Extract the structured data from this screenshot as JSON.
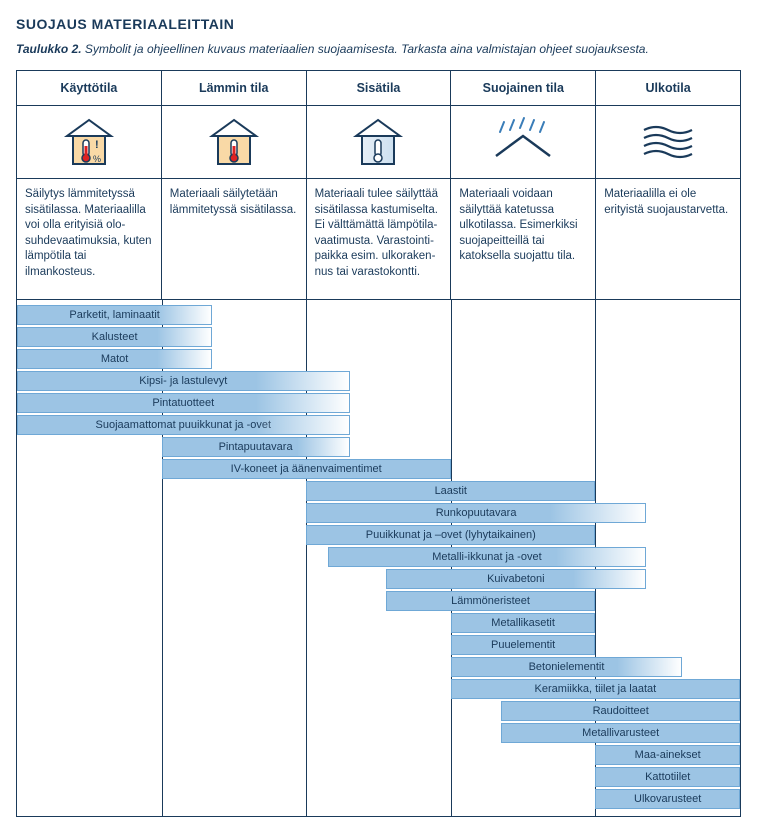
{
  "heading": "SUOJAUS MATERIAALEITTAIN",
  "caption_bold": "Taulukko 2.",
  "caption_rest": "Symbolit ja ohjeellinen kuvaus materiaalien suojaamisesta. Tarkasta aina valmistajan ohjeet suojauksesta.",
  "columns": [
    {
      "title": "Käyttötila",
      "desc": "Säilytys lämmitetyssä sisätilassa. Materiaalilla voi olla erityisiä olo-suhdevaatimuksia, kuten lämpötila tai ilmankosteus."
    },
    {
      "title": "Lämmin tila",
      "desc": "Materiaali säilytetään lämmitetyssä sisätilassa."
    },
    {
      "title": "Sisätila",
      "desc": "Materiaali tulee säilyttää sisätilassa kastumiselta. Ei välttämättä lämpötila-vaatimusta. Varastointi-paikka esim. ulkoraken-nus tai varastokontti."
    },
    {
      "title": "Suojainen tila",
      "desc": "Materiaali voidaan säilyttää katetussa ulkotilassa. Esimerkiksi suojapeitteillä tai katoksella suojattu tila."
    },
    {
      "title": "Ulkotila",
      "desc": "Materiaalilla ei ole erityistä suojaustarvetta."
    }
  ],
  "colors": {
    "bar_fill": "#9cc4e4",
    "bar_border": "#6fa8d6",
    "frame": "#1a3a5a",
    "text": "#1a3a5a",
    "bg": "#ffffff"
  },
  "n_cols": 5,
  "bars": [
    {
      "label": "Parketit, laminaatit",
      "start": 0.0,
      "end": 1.35,
      "fade": true
    },
    {
      "label": "Kalusteet",
      "start": 0.0,
      "end": 1.35,
      "fade": true
    },
    {
      "label": "Matot",
      "start": 0.0,
      "end": 1.35,
      "fade": true
    },
    {
      "label": "Kipsi- ja lastulevyt",
      "start": 0.0,
      "end": 2.3,
      "fade": true
    },
    {
      "label": "Pintatuotteet",
      "start": 0.0,
      "end": 2.3,
      "fade": true
    },
    {
      "label": "Suojaamattomat puuikkunat ja -ovet",
      "start": 0.0,
      "end": 2.3,
      "fade": true
    },
    {
      "label": "Pintapuutavara",
      "start": 1.0,
      "end": 2.3,
      "fade": true
    },
    {
      "label": "IV-koneet ja äänenvaimentimet",
      "start": 1.0,
      "end": 3.0,
      "fade": false
    },
    {
      "label": "Laastit",
      "start": 2.0,
      "end": 4.0,
      "fade": false
    },
    {
      "label": "Runkopuutavara",
      "start": 2.0,
      "end": 4.35,
      "fade": true
    },
    {
      "label": "Puuikkunat ja –ovet (lyhytaikainen)",
      "start": 2.0,
      "end": 4.0,
      "fade": false
    },
    {
      "label": "Metalli-ikkunat ja -ovet",
      "start": 2.15,
      "end": 4.35,
      "fade": true
    },
    {
      "label": "Kuivabetoni",
      "start": 2.55,
      "end": 4.35,
      "fade": true
    },
    {
      "label": "Lämmöneristeet",
      "start": 2.55,
      "end": 4.0,
      "fade": false
    },
    {
      "label": "Metallikasetit",
      "start": 3.0,
      "end": 4.0,
      "fade": false
    },
    {
      "label": "Puuelementit",
      "start": 3.0,
      "end": 4.0,
      "fade": false
    },
    {
      "label": "Betonielementit",
      "start": 3.0,
      "end": 4.6,
      "fade": true
    },
    {
      "label": "Keramiikka, tiilet ja laatat",
      "start": 3.0,
      "end": 5.0,
      "fade": false
    },
    {
      "label": "Raudoitteet",
      "start": 3.35,
      "end": 5.0,
      "fade": false
    },
    {
      "label": "Metallivarusteet",
      "start": 3.35,
      "end": 5.0,
      "fade": false
    },
    {
      "label": "Maa-ainekset",
      "start": 4.0,
      "end": 5.0,
      "fade": false
    },
    {
      "label": "Kattotiilet",
      "start": 4.0,
      "end": 5.0,
      "fade": false
    },
    {
      "label": "Ulkovarusteet",
      "start": 4.0,
      "end": 5.0,
      "fade": false
    }
  ],
  "typography": {
    "heading_fontsize": 14,
    "caption_fontsize": 12,
    "header_fontsize": 12.5,
    "desc_fontsize": 11.5,
    "bar_fontsize": 11
  },
  "icons": {
    "house_stroke": "#1a3a5a",
    "warm_fill": "#f9d9a6",
    "cool_fill1": "#e6eef6",
    "cool_fill2": "#cde0f0",
    "thermo_red": "#d22",
    "rain_blue": "#3a7db8"
  }
}
